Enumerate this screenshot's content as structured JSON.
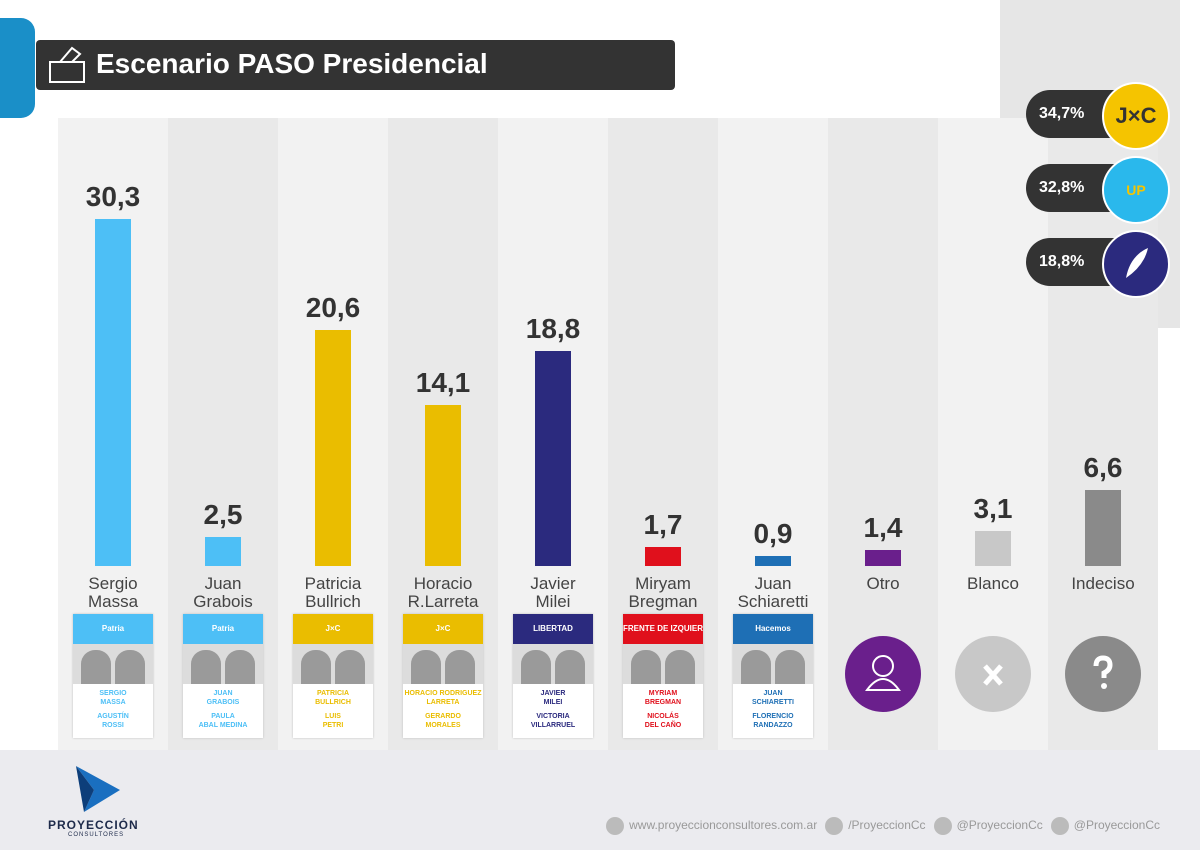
{
  "header": {
    "title": "Escenario PASO Presidencial"
  },
  "chart_data": {
    "type": "bar",
    "categories": [
      "Sergio\nMassa",
      "Juan\nGrabois",
      "Patricia\nBullrich",
      "Horacio\nR.Larreta",
      "Javier\nMilei",
      "Miryam\nBregman",
      "Juan\nSchiaretti",
      "Otro",
      "Blanco",
      "Indeciso"
    ],
    "values": [
      30.3,
      2.5,
      20.6,
      14.1,
      18.8,
      1.7,
      0.9,
      1.4,
      3.1,
      6.6
    ],
    "value_labels": [
      "30,3",
      "2,5",
      "20,6",
      "14,1",
      "18,8",
      "1,7",
      "0,9",
      "1,4",
      "3,1",
      "6,6"
    ],
    "colors": [
      "#4dbff6",
      "#4dbff6",
      "#eabd00",
      "#eabd00",
      "#2b2a7e",
      "#e0101c",
      "#1e6fb5",
      "#6a1f8c",
      "#c8c8c8",
      "#8a8a8a"
    ]
  },
  "ballots": [
    {
      "header": "Patria",
      "top": "SERGIO\nMASSA",
      "bottom": "AGUSTÍN\nROSSI"
    },
    {
      "header": "Patria",
      "top": "JUAN\nGRABOIS",
      "bottom": "PAULA\nABAL MEDINA"
    },
    {
      "header": "J×C",
      "top": "PATRICIA\nBULLRICH",
      "bottom": "LUIS\nPETRI"
    },
    {
      "header": "J×C",
      "top": "HORACIO RODRIGUEZ\nLARRETA",
      "bottom": "GERARDO\nMORALES"
    },
    {
      "header": "LIBERTAD",
      "top": "JAVIER\nMILEI",
      "bottom": "VICTORIA\nVILLARRUEL"
    },
    {
      "header": "FRENTE DE IZQUIERDA",
      "top": "MYRIAM\nBREGMAN",
      "bottom": "NICOLÁS\nDEL CAÑO"
    },
    {
      "header": "Hacemos",
      "top": "JUAN\nSCHIARETTI",
      "bottom": "FLORENCIO\nRANDAZZO"
    }
  ],
  "parties": [
    {
      "logo": "J×C",
      "value": 34.7,
      "label": "34,7%"
    },
    {
      "logo": "UP",
      "value": 32.8,
      "label": "32,8%"
    },
    {
      "value": 18.8,
      "label": "18,8%"
    }
  ],
  "footer": {
    "brand": "PROYECCIÓN",
    "brand_sub": "CONSULTORES",
    "links": [
      "www.proyeccionconsultores.com.ar",
      "/ProyeccionCc",
      "@ProyeccionCc",
      "@ProyeccionCc"
    ]
  }
}
